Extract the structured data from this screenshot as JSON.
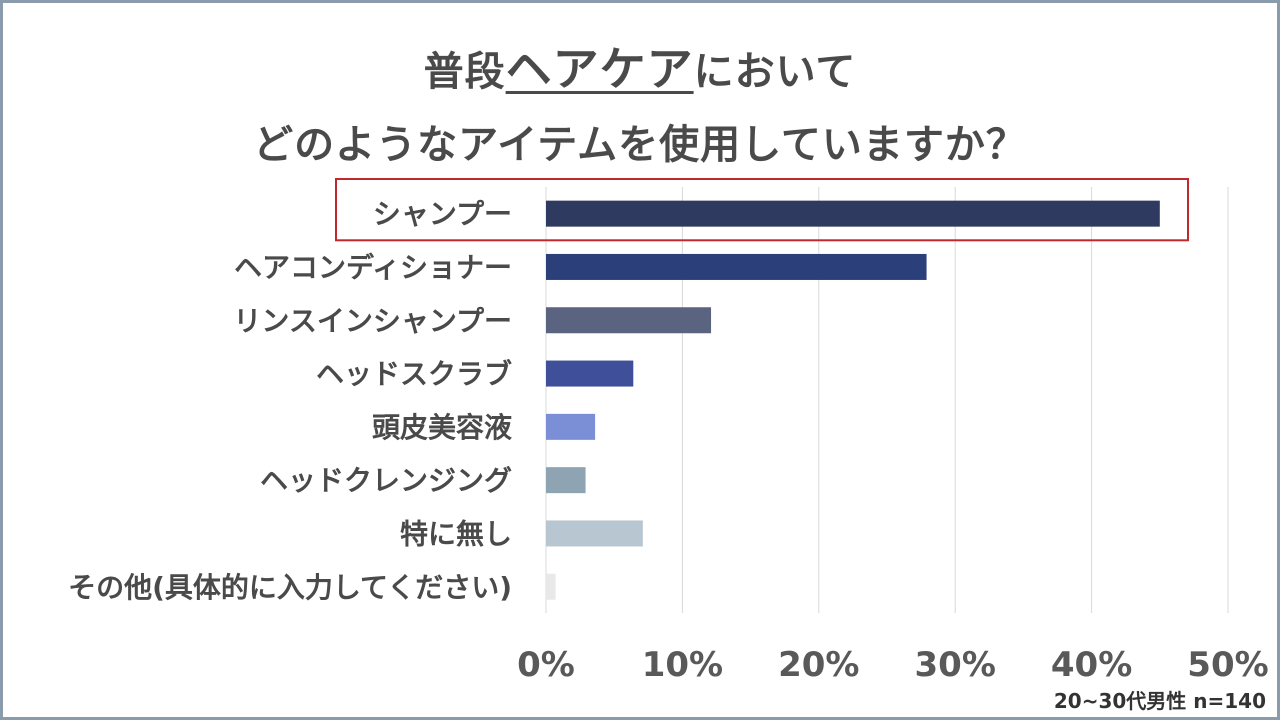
{
  "title": {
    "line1_pre": "普段",
    "line1_highlight": "ヘアケア",
    "line1_post": "において",
    "line2": "どのようなアイテムを使用していますか？"
  },
  "note": "20~30代男性 n=140",
  "chart_data": {
    "type": "bar",
    "orientation": "horizontal",
    "categories": [
      "シャンプー",
      "ヘアコンディショナー",
      "リンスインシャンプー",
      "ヘッドスクラブ",
      "頭皮美容液",
      "ヘッドクレンジング",
      "特に無し",
      "その他(具体的に入力してください)"
    ],
    "values": [
      45.0,
      27.9,
      12.1,
      6.4,
      3.6,
      2.9,
      7.1,
      0.7
    ],
    "colors": [
      "#2e3a5f",
      "#2b3f7a",
      "#5a6480",
      "#3f4f9a",
      "#7a8fd6",
      "#8fa4b3",
      "#b8c6d1",
      "#e8e8e8"
    ],
    "xlim": [
      0,
      50
    ],
    "tick_values": [
      0,
      10,
      20,
      30,
      40,
      50
    ],
    "tick_labels": [
      "0%",
      "10%",
      "20%",
      "30%",
      "40%",
      "50%"
    ],
    "grid": true,
    "highlight_category": "シャンプー",
    "highlight_color": "#c0282d"
  }
}
